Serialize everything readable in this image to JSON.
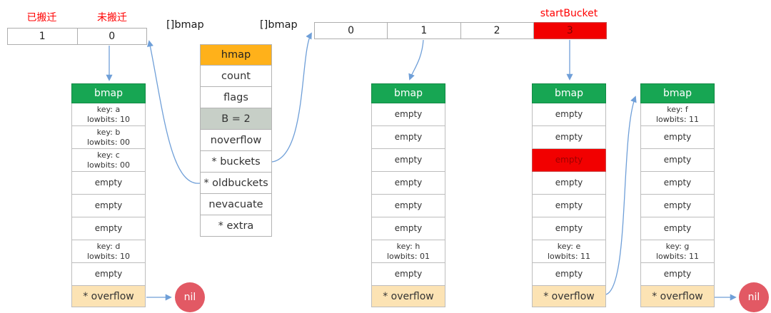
{
  "legend": {
    "migrated": "已搬迁",
    "not_migrated": "未搬迁"
  },
  "slice_labels": {
    "left": "[]bmap",
    "right": "[]bmap"
  },
  "start_bucket_label": "startBucket",
  "old_index_table": {
    "cells": [
      "1",
      "0"
    ]
  },
  "new_index_table": {
    "cells": [
      "0",
      "1",
      "2",
      "3"
    ],
    "highlighted_cell": "3"
  },
  "hmap_struct": {
    "title": "hmap",
    "fields": [
      "count",
      "flags",
      "B = 2",
      "noverflow",
      "* buckets",
      "* oldbuckets",
      "nevacuate",
      "* extra"
    ],
    "highlighted_field": "B = 2"
  },
  "buckets": [
    {
      "name": "old-bucket-0",
      "header": "bmap",
      "slots": [
        {
          "line1": "key: a",
          "line2": "lowbits: 10"
        },
        {
          "line1": "key: b",
          "line2": "lowbits: 00"
        },
        {
          "line1": "key: c",
          "line2": "lowbits: 00"
        },
        {
          "text": "empty"
        },
        {
          "text": "empty"
        },
        {
          "text": "empty"
        },
        {
          "line1": "key: d",
          "line2": "lowbits: 10"
        },
        {
          "text": "empty"
        }
      ],
      "overflow": "* overflow"
    },
    {
      "name": "new-bucket-1",
      "header": "bmap",
      "slots": [
        {
          "text": "empty"
        },
        {
          "text": "empty"
        },
        {
          "text": "empty"
        },
        {
          "text": "empty"
        },
        {
          "text": "empty"
        },
        {
          "text": "empty"
        },
        {
          "line1": "key: h",
          "line2": "lowbits: 01"
        },
        {
          "text": "empty"
        }
      ],
      "overflow": "* overflow"
    },
    {
      "name": "new-bucket-3",
      "header": "bmap",
      "slots": [
        {
          "text": "empty"
        },
        {
          "text": "empty"
        },
        {
          "text": "empty",
          "highlight": true
        },
        {
          "text": "empty"
        },
        {
          "text": "empty"
        },
        {
          "text": "empty"
        },
        {
          "line1": "key: e",
          "line2": "lowbits: 11"
        },
        {
          "text": "empty"
        }
      ],
      "overflow": "* overflow"
    },
    {
      "name": "overflow-bucket",
      "header": "bmap",
      "slots": [
        {
          "line1": "key: f",
          "line2": "lowbits: 11"
        },
        {
          "text": "empty"
        },
        {
          "text": "empty"
        },
        {
          "text": "empty"
        },
        {
          "text": "empty"
        },
        {
          "text": "empty"
        },
        {
          "line1": "key: g",
          "line2": "lowbits: 11"
        },
        {
          "text": "empty"
        }
      ],
      "overflow": "* overflow"
    }
  ],
  "nil_label": "nil",
  "colors": {
    "red_text": "#ff0000",
    "hmap_header": "#ffb11a",
    "b_field_bg": "#c7cfc7",
    "bmap_header": "#17a653",
    "overflow_bg": "#fce3b4",
    "highlight_red": "#f20000",
    "nil_circle": "#e25964",
    "arrow": "#6f9fd8"
  }
}
